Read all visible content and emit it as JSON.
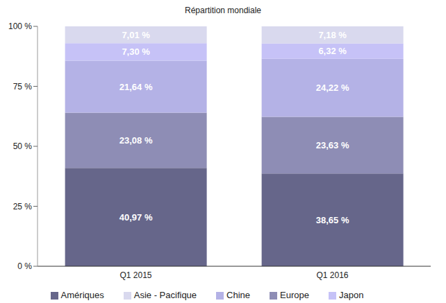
{
  "chart_data": {
    "type": "bar",
    "title": "Répartition mondiale",
    "stacked": true,
    "data_labels": true,
    "legend": "bottom",
    "grid": false,
    "categories": [
      "Q1 2015",
      "Q1 2016"
    ],
    "ylim": [
      0,
      100
    ],
    "yticks": [
      {
        "value": 0,
        "label": "0 %"
      },
      {
        "value": 25,
        "label": "25 %"
      },
      {
        "value": 50,
        "label": "50 %"
      },
      {
        "value": 75,
        "label": "75 %"
      },
      {
        "value": 100,
        "label": "100 %"
      }
    ],
    "series": [
      {
        "name": "Amériques",
        "color": "#66668a",
        "values": [
          40.97,
          38.65
        ],
        "value_labels": [
          "40,97 %",
          "38,65 %"
        ]
      },
      {
        "name": "Europe",
        "color": "#8e8db5",
        "values": [
          23.08,
          23.63
        ],
        "value_labels": [
          "23,08 %",
          "23,63 %"
        ]
      },
      {
        "name": "Chine",
        "color": "#b4b2e6",
        "values": [
          21.64,
          24.22
        ],
        "value_labels": [
          "21,64 %",
          "24,22 %"
        ]
      },
      {
        "name": "Japon",
        "color": "#c6c2f7",
        "values": [
          7.3,
          6.32
        ],
        "value_labels": [
          "7,30 %",
          "6,32 %"
        ]
      },
      {
        "name": "Asie - Pacifique",
        "color": "#d9d9ee",
        "values": [
          7.01,
          7.18
        ],
        "value_labels": [
          "7,01 %",
          "7,18 %"
        ]
      }
    ]
  }
}
